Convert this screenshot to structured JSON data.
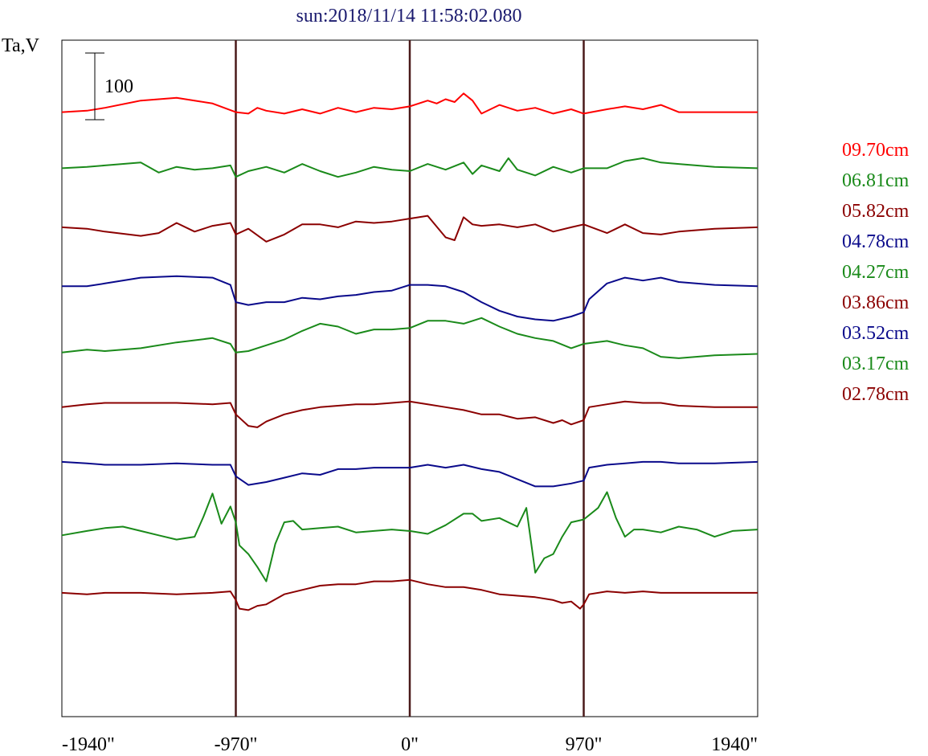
{
  "chart_data": {
    "type": "line",
    "title": "sun:2018/11/14 11:58:02.080",
    "ylabel": "Ta,V",
    "xlabel": "",
    "scale_bar": {
      "value": 100,
      "label": "100"
    },
    "x_ticks": [
      {
        "value": -1940,
        "label": "-1940\""
      },
      {
        "value": -970,
        "label": "-970\""
      },
      {
        "value": 0,
        "label": "0\""
      },
      {
        "value": 970,
        "label": "970\""
      },
      {
        "value": 1940,
        "label": "1940\""
      }
    ],
    "xlim": [
      -1940,
      1940
    ],
    "vertical_lines": [
      -970,
      0,
      970
    ],
    "vertical_line_color": "#4a1a1a",
    "ylim": [
      -20,
      920
    ],
    "grid": false,
    "legend_position": "right",
    "series": [
      {
        "name": "09.70cm",
        "color": "#ff0000",
        "baseline": 820,
        "x": [
          -1940,
          -1800,
          -1700,
          -1500,
          -1300,
          -1100,
          -970,
          -900,
          -850,
          -800,
          -700,
          -600,
          -500,
          -400,
          -300,
          -200,
          -100,
          0,
          100,
          150,
          200,
          250,
          300,
          350,
          400,
          500,
          600,
          700,
          800,
          900,
          970,
          1100,
          1200,
          1300,
          1400,
          1500,
          1700,
          1940
        ],
        "values": [
          820,
          822,
          826,
          836,
          840,
          832,
          820,
          818,
          826,
          822,
          818,
          824,
          818,
          826,
          820,
          826,
          824,
          828,
          836,
          832,
          838,
          834,
          846,
          836,
          818,
          830,
          822,
          826,
          818,
          824,
          818,
          824,
          828,
          824,
          830,
          820,
          820,
          820
        ]
      },
      {
        "name": "06.81cm",
        "color": "#1a8a1a",
        "baseline": 740,
        "x": [
          -1940,
          -1800,
          -1700,
          -1500,
          -1400,
          -1300,
          -1200,
          -1100,
          -1000,
          -970,
          -900,
          -800,
          -700,
          -600,
          -500,
          -400,
          -300,
          -200,
          -100,
          0,
          100,
          200,
          300,
          350,
          400,
          500,
          550,
          600,
          700,
          800,
          900,
          970,
          1100,
          1200,
          1300,
          1400,
          1500,
          1700,
          1940
        ],
        "values": [
          742,
          744,
          746,
          750,
          736,
          744,
          740,
          742,
          746,
          730,
          738,
          744,
          736,
          748,
          738,
          730,
          736,
          744,
          740,
          738,
          748,
          740,
          750,
          734,
          746,
          738,
          756,
          740,
          732,
          744,
          736,
          742,
          742,
          752,
          756,
          750,
          748,
          744,
          742
        ]
      },
      {
        "name": "05.82cm",
        "color": "#8b0000",
        "baseline": 658,
        "x": [
          -1940,
          -1800,
          -1700,
          -1500,
          -1400,
          -1300,
          -1200,
          -1100,
          -1000,
          -970,
          -900,
          -800,
          -700,
          -600,
          -500,
          -400,
          -300,
          -200,
          -100,
          0,
          100,
          200,
          250,
          300,
          350,
          400,
          500,
          600,
          700,
          800,
          900,
          970,
          1100,
          1200,
          1300,
          1400,
          1500,
          1700,
          1940
        ],
        "values": [
          660,
          658,
          654,
          648,
          652,
          666,
          654,
          662,
          666,
          650,
          658,
          640,
          650,
          664,
          664,
          660,
          668,
          666,
          668,
          672,
          676,
          646,
          642,
          674,
          664,
          662,
          664,
          660,
          664,
          654,
          660,
          664,
          652,
          664,
          652,
          650,
          654,
          658,
          660
        ]
      },
      {
        "name": "04.78cm",
        "color": "#0a0a8b",
        "baseline": 578,
        "x": [
          -1940,
          -1800,
          -1700,
          -1500,
          -1300,
          -1100,
          -1000,
          -970,
          -900,
          -800,
          -700,
          -600,
          -500,
          -400,
          -300,
          -200,
          -100,
          0,
          100,
          200,
          300,
          400,
          500,
          600,
          700,
          800,
          900,
          970,
          1000,
          1100,
          1200,
          1300,
          1400,
          1500,
          1700,
          1940
        ],
        "values": [
          578,
          578,
          582,
          590,
          592,
          590,
          580,
          556,
          552,
          556,
          556,
          562,
          560,
          564,
          566,
          570,
          572,
          580,
          580,
          578,
          570,
          556,
          544,
          536,
          532,
          530,
          536,
          542,
          560,
          582,
          590,
          586,
          590,
          584,
          580,
          578
        ]
      },
      {
        "name": "04.27cm",
        "color": "#1a8a1a",
        "baseline": 488,
        "x": [
          -1940,
          -1800,
          -1700,
          -1500,
          -1300,
          -1100,
          -1000,
          -970,
          -900,
          -800,
          -700,
          -600,
          -500,
          -400,
          -300,
          -200,
          -100,
          0,
          100,
          200,
          300,
          400,
          500,
          600,
          700,
          800,
          900,
          970,
          1100,
          1200,
          1300,
          1400,
          1500,
          1700,
          1940
        ],
        "values": [
          486,
          490,
          488,
          492,
          500,
          506,
          498,
          486,
          488,
          496,
          504,
          516,
          526,
          522,
          512,
          518,
          518,
          520,
          530,
          530,
          526,
          534,
          522,
          512,
          506,
          502,
          492,
          498,
          502,
          496,
          492,
          480,
          478,
          482,
          484
        ]
      },
      {
        "name": "03.86cm",
        "color": "#8b0000",
        "baseline": 410,
        "x": [
          -1940,
          -1800,
          -1700,
          -1500,
          -1300,
          -1100,
          -1000,
          -970,
          -900,
          -850,
          -800,
          -700,
          -600,
          -500,
          -400,
          -300,
          -200,
          -100,
          0,
          100,
          200,
          300,
          400,
          500,
          600,
          700,
          800,
          850,
          900,
          970,
          1000,
          1100,
          1200,
          1300,
          1400,
          1500,
          1700,
          1940
        ],
        "values": [
          410,
          414,
          416,
          416,
          416,
          414,
          416,
          400,
          384,
          382,
          390,
          400,
          406,
          410,
          412,
          414,
          414,
          416,
          418,
          414,
          410,
          406,
          400,
          400,
          394,
          396,
          388,
          392,
          386,
          392,
          410,
          414,
          418,
          416,
          416,
          412,
          410,
          410
        ]
      },
      {
        "name": "03.52cm",
        "color": "#0a0a8b",
        "baseline": 332,
        "x": [
          -1940,
          -1800,
          -1700,
          -1500,
          -1300,
          -1100,
          -1000,
          -970,
          -900,
          -800,
          -700,
          -600,
          -500,
          -400,
          -300,
          -200,
          -100,
          0,
          100,
          200,
          300,
          400,
          500,
          600,
          700,
          800,
          900,
          970,
          1000,
          1100,
          1200,
          1300,
          1400,
          1500,
          1700,
          1940
        ],
        "values": [
          334,
          332,
          330,
          330,
          332,
          330,
          330,
          314,
          302,
          306,
          312,
          318,
          316,
          324,
          324,
          326,
          326,
          326,
          330,
          326,
          330,
          324,
          320,
          310,
          300,
          300,
          304,
          308,
          326,
          330,
          332,
          334,
          334,
          332,
          332,
          334
        ]
      },
      {
        "name": "03.17cm",
        "color": "#1a8a1a",
        "baseline": 232,
        "x": [
          -1940,
          -1800,
          -1700,
          -1600,
          -1500,
          -1400,
          -1300,
          -1200,
          -1150,
          -1100,
          -1050,
          -1000,
          -970,
          -950,
          -900,
          -850,
          -800,
          -750,
          -700,
          -650,
          -600,
          -500,
          -400,
          -300,
          -200,
          -100,
          0,
          100,
          200,
          300,
          350,
          400,
          500,
          600,
          650,
          700,
          750,
          800,
          850,
          900,
          970,
          1050,
          1100,
          1150,
          1200,
          1250,
          1300,
          1400,
          1500,
          1600,
          1700,
          1800,
          1940
        ],
        "values": [
          232,
          238,
          242,
          244,
          238,
          232,
          226,
          230,
          258,
          290,
          248,
          272,
          250,
          218,
          206,
          188,
          168,
          220,
          250,
          252,
          240,
          242,
          244,
          236,
          238,
          240,
          238,
          234,
          246,
          262,
          262,
          252,
          256,
          244,
          270,
          180,
          200,
          206,
          230,
          250,
          254,
          270,
          292,
          256,
          230,
          240,
          240,
          236,
          244,
          240,
          230,
          238,
          240
        ]
      },
      {
        "name": "02.78cm",
        "color": "#8b0000",
        "baseline": 152,
        "x": [
          -1940,
          -1800,
          -1700,
          -1500,
          -1300,
          -1100,
          -1000,
          -970,
          -950,
          -900,
          -850,
          -800,
          -700,
          -600,
          -500,
          -400,
          -300,
          -200,
          -100,
          0,
          100,
          200,
          300,
          400,
          500,
          600,
          700,
          800,
          850,
          900,
          950,
          970,
          1000,
          1100,
          1200,
          1300,
          1400,
          1500,
          1700,
          1940
        ],
        "values": [
          152,
          150,
          152,
          152,
          150,
          152,
          154,
          142,
          130,
          128,
          134,
          136,
          150,
          156,
          162,
          164,
          164,
          168,
          168,
          170,
          164,
          160,
          160,
          156,
          150,
          148,
          146,
          142,
          138,
          140,
          130,
          136,
          150,
          154,
          152,
          154,
          152,
          152,
          152,
          152
        ]
      }
    ]
  }
}
